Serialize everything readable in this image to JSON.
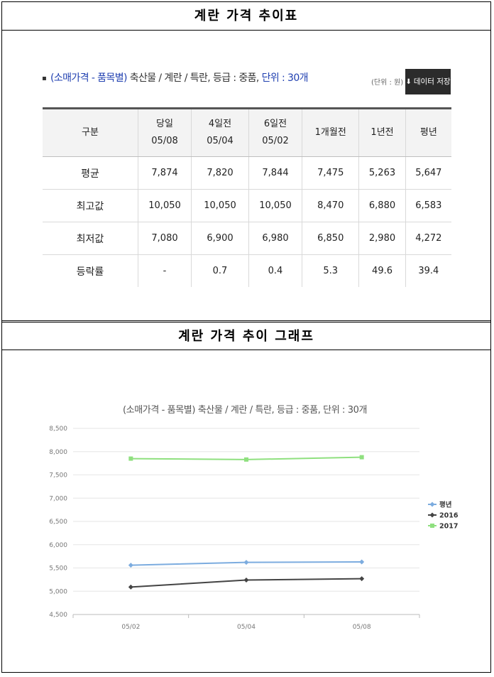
{
  "section1_title": "계란 가격 추이표",
  "section2_title": "계란 가격 추이 그래프",
  "subtitle": {
    "bullet": "▪",
    "category": "(소매가격 - 품목별)",
    "item": " 축산물 / 계란 / 특란,  등급 : 중품,  ",
    "unit": "단위 : 30개"
  },
  "unit_note": "(단위 : 원)",
  "save_button": {
    "icon": "⬇",
    "label": "데이터 저장"
  },
  "table": {
    "headers": [
      {
        "line1": "구분",
        "line2": ""
      },
      {
        "line1": "당일",
        "line2": "05/08"
      },
      {
        "line1": "4일전",
        "line2": "05/04"
      },
      {
        "line1": "6일전",
        "line2": "05/02"
      },
      {
        "line1": "1개월전",
        "line2": ""
      },
      {
        "line1": "1년전",
        "line2": ""
      },
      {
        "line1": "평년",
        "line2": ""
      }
    ],
    "rows": [
      [
        "평균",
        "7,874",
        "7,820",
        "7,844",
        "7,475",
        "5,263",
        "5,647"
      ],
      [
        "최고값",
        "10,050",
        "10,050",
        "10,050",
        "8,470",
        "6,880",
        "6,583"
      ],
      [
        "최저값",
        "7,080",
        "6,900",
        "6,980",
        "6,850",
        "2,980",
        "4,272"
      ],
      [
        "등락률",
        "-",
        "0.7",
        "0.4",
        "5.3",
        "49.6",
        "39.4"
      ]
    ]
  },
  "chart_data": {
    "type": "line",
    "title": "(소매가격 - 품목별) 축산물 / 계란 / 특란, 등급 : 중품, 단위 : 30개",
    "categories": [
      "05/02",
      "05/04",
      "05/08"
    ],
    "ylim": [
      4500,
      8500
    ],
    "yticks": [
      "4,500",
      "5,000",
      "5,500",
      "6,000",
      "6,500",
      "7,000",
      "7,500",
      "8,000",
      "8,500"
    ],
    "ytick_values": [
      4500,
      5000,
      5500,
      6000,
      6500,
      7000,
      7500,
      8000,
      8500
    ],
    "grid": true,
    "legend": "right",
    "series": [
      {
        "name": "평년",
        "values": [
          5560,
          5620,
          5630
        ],
        "color": "#7cacdf",
        "marker": "diamond"
      },
      {
        "name": "2016",
        "values": [
          5090,
          5240,
          5270
        ],
        "color": "#444444",
        "marker": "diamond"
      },
      {
        "name": "2017",
        "values": [
          7850,
          7830,
          7880
        ],
        "color": "#8fe07f",
        "marker": "square"
      }
    ]
  }
}
